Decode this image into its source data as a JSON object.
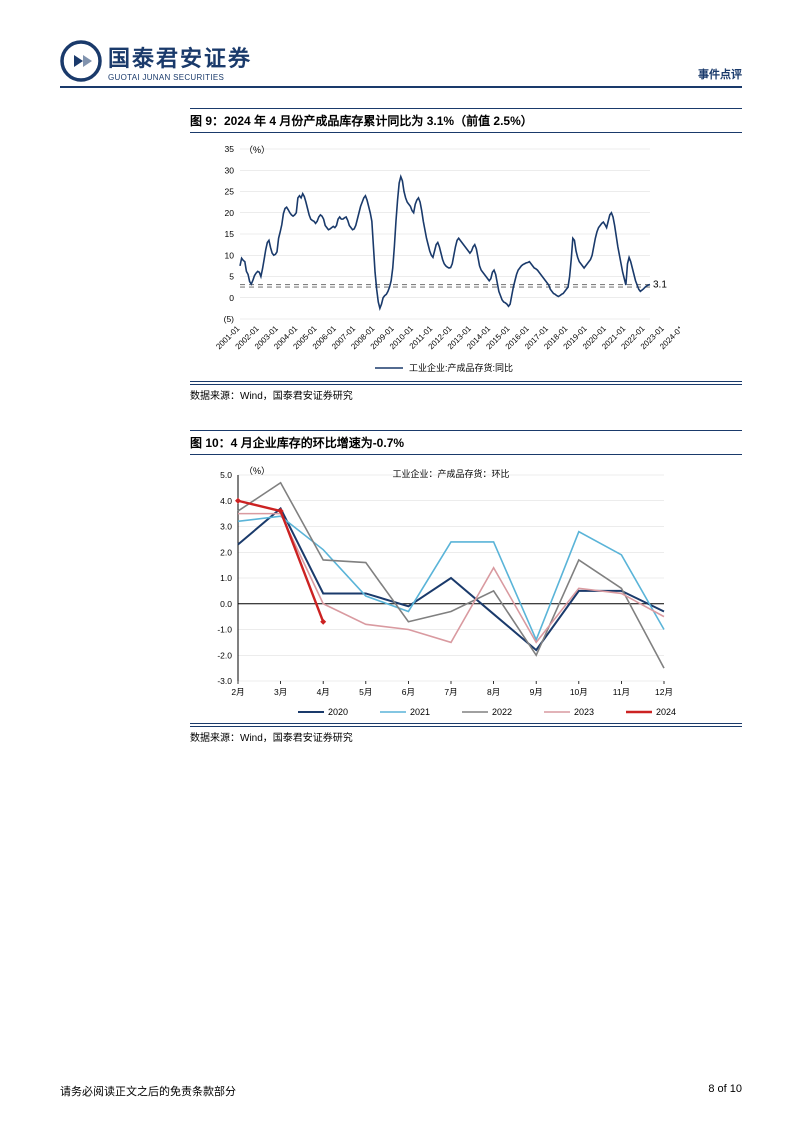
{
  "header": {
    "logo_cn": "国泰君安证券",
    "logo_en": "GUOTAI JUNAN SECURITIES",
    "doc_type": "事件点评"
  },
  "fig9": {
    "title": "图 9：2024 年 4 月份产成品库存累计同比为 3.1%（前值 2.5%）",
    "type": "line",
    "ylabel": "（%）",
    "y_ticks": [
      -5,
      0,
      5,
      10,
      15,
      20,
      25,
      30,
      35
    ],
    "y_tick_labels": [
      "(5)",
      "0",
      "5",
      "10",
      "15",
      "20",
      "25",
      "30",
      "35"
    ],
    "ylim": [
      -5,
      35
    ],
    "x_labels": [
      "2001-01",
      "2002-01",
      "2003-01",
      "2004-01",
      "2005-01",
      "2006-01",
      "2007-01",
      "2008-01",
      "2009-01",
      "2010-01",
      "2011-01",
      "2012-01",
      "2013-01",
      "2014-01",
      "2015-01",
      "2016-01",
      "2017-01",
      "2018-01",
      "2019-01",
      "2020-01",
      "2021-01",
      "2022-01",
      "2023-01",
      "2024-01"
    ],
    "series_label": "工业企业:产成品存货:同比",
    "line_color": "#1a3a6b",
    "ref_line_color": "#808080",
    "ref_line_value": 3.1,
    "last_value_label": "3.1",
    "background_color": "#ffffff",
    "grid_color": "#d9d9d9",
    "series": [
      {
        "x": 0,
        "y": 7.5
      },
      {
        "x": 1,
        "y": 9.3
      },
      {
        "x": 2,
        "y": 8.8
      },
      {
        "x": 3,
        "y": 8.5
      },
      {
        "x": 4,
        "y": 6.2
      },
      {
        "x": 5,
        "y": 5.5
      },
      {
        "x": 6,
        "y": 3.8
      },
      {
        "x": 7,
        "y": 3.2
      },
      {
        "x": 8,
        "y": 4.1
      },
      {
        "x": 9,
        "y": 5.2
      },
      {
        "x": 10,
        "y": 5.8
      },
      {
        "x": 11,
        "y": 6.2
      },
      {
        "x": 12,
        "y": 6.0
      },
      {
        "x": 13,
        "y": 5.0
      },
      {
        "x": 14,
        "y": 6.8
      },
      {
        "x": 15,
        "y": 9.0
      },
      {
        "x": 16,
        "y": 11.3
      },
      {
        "x": 17,
        "y": 13.0
      },
      {
        "x": 18,
        "y": 13.5
      },
      {
        "x": 19,
        "y": 11.8
      },
      {
        "x": 20,
        "y": 10.5
      },
      {
        "x": 21,
        "y": 10.0
      },
      {
        "x": 22,
        "y": 10.2
      },
      {
        "x": 23,
        "y": 10.8
      },
      {
        "x": 24,
        "y": 14.0
      },
      {
        "x": 25,
        "y": 15.5
      },
      {
        "x": 26,
        "y": 17.2
      },
      {
        "x": 27,
        "y": 19.8
      },
      {
        "x": 28,
        "y": 21.0
      },
      {
        "x": 29,
        "y": 21.3
      },
      {
        "x": 30,
        "y": 20.7
      },
      {
        "x": 31,
        "y": 20.0
      },
      {
        "x": 32,
        "y": 19.5
      },
      {
        "x": 33,
        "y": 19.2
      },
      {
        "x": 34,
        "y": 19.5
      },
      {
        "x": 35,
        "y": 20.0
      },
      {
        "x": 36,
        "y": 23.5
      },
      {
        "x": 37,
        "y": 24.0
      },
      {
        "x": 38,
        "y": 23.5
      },
      {
        "x": 39,
        "y": 24.5
      },
      {
        "x": 40,
        "y": 23.8
      },
      {
        "x": 41,
        "y": 22.5
      },
      {
        "x": 42,
        "y": 21.0
      },
      {
        "x": 43,
        "y": 19.5
      },
      {
        "x": 44,
        "y": 18.5
      },
      {
        "x": 45,
        "y": 18.2
      },
      {
        "x": 46,
        "y": 18.0
      },
      {
        "x": 47,
        "y": 17.5
      },
      {
        "x": 48,
        "y": 18.0
      },
      {
        "x": 49,
        "y": 19.0
      },
      {
        "x": 50,
        "y": 19.5
      },
      {
        "x": 51,
        "y": 19.2
      },
      {
        "x": 52,
        "y": 18.5
      },
      {
        "x": 53,
        "y": 17.0
      },
      {
        "x": 54,
        "y": 16.5
      },
      {
        "x": 55,
        "y": 16.0
      },
      {
        "x": 56,
        "y": 16.2
      },
      {
        "x": 57,
        "y": 16.5
      },
      {
        "x": 58,
        "y": 16.8
      },
      {
        "x": 59,
        "y": 16.5
      },
      {
        "x": 60,
        "y": 17.0
      },
      {
        "x": 61,
        "y": 18.5
      },
      {
        "x": 62,
        "y": 19.0
      },
      {
        "x": 63,
        "y": 18.5
      },
      {
        "x": 64,
        "y": 18.5
      },
      {
        "x": 65,
        "y": 18.8
      },
      {
        "x": 66,
        "y": 19.0
      },
      {
        "x": 67,
        "y": 18.2
      },
      {
        "x": 68,
        "y": 17.0
      },
      {
        "x": 69,
        "y": 16.5
      },
      {
        "x": 70,
        "y": 16.0
      },
      {
        "x": 71,
        "y": 16.2
      },
      {
        "x": 72,
        "y": 17.0
      },
      {
        "x": 73,
        "y": 18.5
      },
      {
        "x": 74,
        "y": 20.0
      },
      {
        "x": 75,
        "y": 21.5
      },
      {
        "x": 76,
        "y": 22.5
      },
      {
        "x": 77,
        "y": 23.5
      },
      {
        "x": 78,
        "y": 24.0
      },
      {
        "x": 79,
        "y": 23.0
      },
      {
        "x": 80,
        "y": 21.5
      },
      {
        "x": 81,
        "y": 20.0
      },
      {
        "x": 82,
        "y": 18.0
      },
      {
        "x": 83,
        "y": 12.0
      },
      {
        "x": 84,
        "y": 6.0
      },
      {
        "x": 85,
        "y": 2.0
      },
      {
        "x": 86,
        "y": -1.0
      },
      {
        "x": 87,
        "y": -2.5
      },
      {
        "x": 88,
        "y": -1.5
      },
      {
        "x": 89,
        "y": 0.0
      },
      {
        "x": 90,
        "y": 0.5
      },
      {
        "x": 91,
        "y": 0.8
      },
      {
        "x": 92,
        "y": 1.5
      },
      {
        "x": 93,
        "y": 2.5
      },
      {
        "x": 94,
        "y": 4.0
      },
      {
        "x": 95,
        "y": 7.0
      },
      {
        "x": 96,
        "y": 12.0
      },
      {
        "x": 97,
        "y": 18.0
      },
      {
        "x": 98,
        "y": 23.0
      },
      {
        "x": 99,
        "y": 27.0
      },
      {
        "x": 100,
        "y": 28.5
      },
      {
        "x": 101,
        "y": 27.5
      },
      {
        "x": 102,
        "y": 25.0
      },
      {
        "x": 103,
        "y": 23.5
      },
      {
        "x": 104,
        "y": 22.5
      },
      {
        "x": 105,
        "y": 22.0
      },
      {
        "x": 106,
        "y": 21.5
      },
      {
        "x": 107,
        "y": 20.5
      },
      {
        "x": 108,
        "y": 20.0
      },
      {
        "x": 109,
        "y": 22.0
      },
      {
        "x": 110,
        "y": 23.0
      },
      {
        "x": 111,
        "y": 23.5
      },
      {
        "x": 112,
        "y": 22.5
      },
      {
        "x": 113,
        "y": 20.5
      },
      {
        "x": 114,
        "y": 18.0
      },
      {
        "x": 115,
        "y": 16.0
      },
      {
        "x": 116,
        "y": 14.0
      },
      {
        "x": 117,
        "y": 12.5
      },
      {
        "x": 118,
        "y": 11.0
      },
      {
        "x": 119,
        "y": 10.0
      },
      {
        "x": 120,
        "y": 9.5
      },
      {
        "x": 121,
        "y": 11.0
      },
      {
        "x": 122,
        "y": 12.5
      },
      {
        "x": 123,
        "y": 13.0
      },
      {
        "x": 124,
        "y": 12.0
      },
      {
        "x": 125,
        "y": 10.5
      },
      {
        "x": 126,
        "y": 9.0
      },
      {
        "x": 127,
        "y": 8.0
      },
      {
        "x": 128,
        "y": 7.5
      },
      {
        "x": 129,
        "y": 7.2
      },
      {
        "x": 130,
        "y": 7.0
      },
      {
        "x": 131,
        "y": 7.1
      },
      {
        "x": 132,
        "y": 8.0
      },
      {
        "x": 133,
        "y": 10.0
      },
      {
        "x": 134,
        "y": 12.0
      },
      {
        "x": 135,
        "y": 13.5
      },
      {
        "x": 136,
        "y": 14.0
      },
      {
        "x": 137,
        "y": 13.5
      },
      {
        "x": 138,
        "y": 13.0
      },
      {
        "x": 139,
        "y": 12.5
      },
      {
        "x": 140,
        "y": 12.0
      },
      {
        "x": 141,
        "y": 11.5
      },
      {
        "x": 142,
        "y": 11.0
      },
      {
        "x": 143,
        "y": 10.5
      },
      {
        "x": 144,
        "y": 11.0
      },
      {
        "x": 145,
        "y": 12.0
      },
      {
        "x": 146,
        "y": 12.5
      },
      {
        "x": 147,
        "y": 11.5
      },
      {
        "x": 148,
        "y": 9.5
      },
      {
        "x": 149,
        "y": 7.5
      },
      {
        "x": 150,
        "y": 6.5
      },
      {
        "x": 151,
        "y": 6.0
      },
      {
        "x": 152,
        "y": 5.5
      },
      {
        "x": 153,
        "y": 5.0
      },
      {
        "x": 154,
        "y": 4.5
      },
      {
        "x": 155,
        "y": 4.0
      },
      {
        "x": 156,
        "y": 4.5
      },
      {
        "x": 157,
        "y": 6.0
      },
      {
        "x": 158,
        "y": 6.5
      },
      {
        "x": 159,
        "y": 5.5
      },
      {
        "x": 160,
        "y": 3.5
      },
      {
        "x": 161,
        "y": 1.5
      },
      {
        "x": 162,
        "y": 0.5
      },
      {
        "x": 163,
        "y": -0.5
      },
      {
        "x": 164,
        "y": -1.0
      },
      {
        "x": 165,
        "y": -1.2
      },
      {
        "x": 166,
        "y": -1.5
      },
      {
        "x": 167,
        "y": -2.0
      },
      {
        "x": 168,
        "y": -1.5
      },
      {
        "x": 169,
        "y": 0.5
      },
      {
        "x": 170,
        "y": 2.5
      },
      {
        "x": 171,
        "y": 4.0
      },
      {
        "x": 172,
        "y": 5.5
      },
      {
        "x": 173,
        "y": 6.5
      },
      {
        "x": 174,
        "y": 7.0
      },
      {
        "x": 175,
        "y": 7.5
      },
      {
        "x": 176,
        "y": 7.8
      },
      {
        "x": 177,
        "y": 8.0
      },
      {
        "x": 178,
        "y": 8.2
      },
      {
        "x": 179,
        "y": 8.3
      },
      {
        "x": 180,
        "y": 8.5
      },
      {
        "x": 181,
        "y": 8.0
      },
      {
        "x": 182,
        "y": 7.5
      },
      {
        "x": 183,
        "y": 7.0
      },
      {
        "x": 184,
        "y": 6.8
      },
      {
        "x": 185,
        "y": 6.5
      },
      {
        "x": 186,
        "y": 6.0
      },
      {
        "x": 187,
        "y": 5.5
      },
      {
        "x": 188,
        "y": 5.0
      },
      {
        "x": 189,
        "y": 4.5
      },
      {
        "x": 190,
        "y": 4.0
      },
      {
        "x": 191,
        "y": 3.5
      },
      {
        "x": 192,
        "y": 3.0
      },
      {
        "x": 193,
        "y": 2.0
      },
      {
        "x": 194,
        "y": 1.5
      },
      {
        "x": 195,
        "y": 1.0
      },
      {
        "x": 196,
        "y": 0.8
      },
      {
        "x": 197,
        "y": 0.5
      },
      {
        "x": 198,
        "y": 0.3
      },
      {
        "x": 199,
        "y": 0.5
      },
      {
        "x": 200,
        "y": 0.8
      },
      {
        "x": 201,
        "y": 1.0
      },
      {
        "x": 202,
        "y": 1.5
      },
      {
        "x": 203,
        "y": 2.0
      },
      {
        "x": 204,
        "y": 2.5
      },
      {
        "x": 205,
        "y": 5.0
      },
      {
        "x": 206,
        "y": 9.0
      },
      {
        "x": 207,
        "y": 14.0
      },
      {
        "x": 208,
        "y": 13.5
      },
      {
        "x": 209,
        "y": 11.0
      },
      {
        "x": 210,
        "y": 9.5
      },
      {
        "x": 211,
        "y": 8.5
      },
      {
        "x": 212,
        "y": 8.0
      },
      {
        "x": 213,
        "y": 7.5
      },
      {
        "x": 214,
        "y": 7.0
      },
      {
        "x": 215,
        "y": 7.5
      },
      {
        "x": 216,
        "y": 8.0
      },
      {
        "x": 217,
        "y": 8.5
      },
      {
        "x": 218,
        "y": 9.0
      },
      {
        "x": 219,
        "y": 10.0
      },
      {
        "x": 220,
        "y": 12.0
      },
      {
        "x": 221,
        "y": 14.0
      },
      {
        "x": 222,
        "y": 15.5
      },
      {
        "x": 223,
        "y": 16.5
      },
      {
        "x": 224,
        "y": 17.0
      },
      {
        "x": 225,
        "y": 17.5
      },
      {
        "x": 226,
        "y": 17.8
      },
      {
        "x": 227,
        "y": 17.2
      },
      {
        "x": 228,
        "y": 16.5
      },
      {
        "x": 229,
        "y": 18.0
      },
      {
        "x": 230,
        "y": 19.5
      },
      {
        "x": 231,
        "y": 20.0
      },
      {
        "x": 232,
        "y": 19.0
      },
      {
        "x": 233,
        "y": 17.0
      },
      {
        "x": 234,
        "y": 14.5
      },
      {
        "x": 235,
        "y": 12.0
      },
      {
        "x": 236,
        "y": 10.0
      },
      {
        "x": 237,
        "y": 8.0
      },
      {
        "x": 238,
        "y": 6.0
      },
      {
        "x": 239,
        "y": 4.5
      },
      {
        "x": 240,
        "y": 3.0
      },
      {
        "x": 241,
        "y": 8.0
      },
      {
        "x": 242,
        "y": 9.5
      },
      {
        "x": 243,
        "y": 8.5
      },
      {
        "x": 244,
        "y": 7.0
      },
      {
        "x": 245,
        "y": 5.5
      },
      {
        "x": 246,
        "y": 4.0
      },
      {
        "x": 247,
        "y": 3.0
      },
      {
        "x": 248,
        "y": 2.0
      },
      {
        "x": 249,
        "y": 1.5
      },
      {
        "x": 250,
        "y": 1.8
      },
      {
        "x": 251,
        "y": 2.1
      },
      {
        "x": 252,
        "y": 2.5
      },
      {
        "x": 253,
        "y": 2.8
      },
      {
        "x": 254,
        "y": 3.0
      },
      {
        "x": 255,
        "y": 3.1
      }
    ],
    "source": "数据来源：Wind，国泰君安证券研究"
  },
  "fig10": {
    "title": "图 10：4 月企业库存的环比增速为-0.7%",
    "type": "line",
    "title_in_chart": "工业企业：产成品存货：环比",
    "ylabel": "（%）",
    "y_ticks": [
      -3.0,
      -2.0,
      -1.0,
      0.0,
      1.0,
      2.0,
      3.0,
      4.0,
      5.0
    ],
    "y_tick_labels": [
      "-3.0",
      "-2.0",
      "-1.0",
      "0.0",
      "1.0",
      "2.0",
      "3.0",
      "4.0",
      "5.0"
    ],
    "ylim": [
      -3.0,
      5.0
    ],
    "x_labels": [
      "2月",
      "3月",
      "4月",
      "5月",
      "6月",
      "7月",
      "8月",
      "9月",
      "10月",
      "11月",
      "12月"
    ],
    "background_color": "#ffffff",
    "grid_color": "#d9d9d9",
    "axis_color": "#000000",
    "series": {
      "2020": {
        "color": "#1a3a6b",
        "width": 2,
        "data": [
          2.3,
          3.7,
          0.4,
          0.4,
          -0.1,
          1.0,
          -0.4,
          -1.8,
          0.5,
          0.5,
          -0.3
        ]
      },
      "2021": {
        "color": "#5ab4d8",
        "width": 1.6,
        "data": [
          3.2,
          3.4,
          2.1,
          0.3,
          -0.3,
          2.4,
          2.4,
          -1.4,
          2.8,
          1.9,
          -1.0
        ]
      },
      "2022": {
        "color": "#808080",
        "width": 1.6,
        "data": [
          3.6,
          4.7,
          1.7,
          1.6,
          -0.7,
          -0.3,
          0.5,
          -2.0,
          1.7,
          0.6,
          -2.5
        ]
      },
      "2023": {
        "color": "#d99aa0",
        "width": 1.6,
        "data": [
          3.5,
          3.5,
          0.0,
          -0.8,
          -1.0,
          -1.5,
          1.4,
          -1.5,
          0.6,
          0.4,
          -0.5
        ]
      },
      "2024": {
        "color": "#cc2222",
        "width": 2.4,
        "data": [
          4.0,
          3.6,
          -0.7
        ]
      }
    },
    "legend_order": [
      "2020",
      "2021",
      "2022",
      "2023",
      "2024"
    ],
    "source": "数据来源：Wind，国泰君安证券研究"
  },
  "footer": {
    "disclaimer": "请务必阅读正文之后的免责条款部分",
    "page": "8 of 10"
  }
}
